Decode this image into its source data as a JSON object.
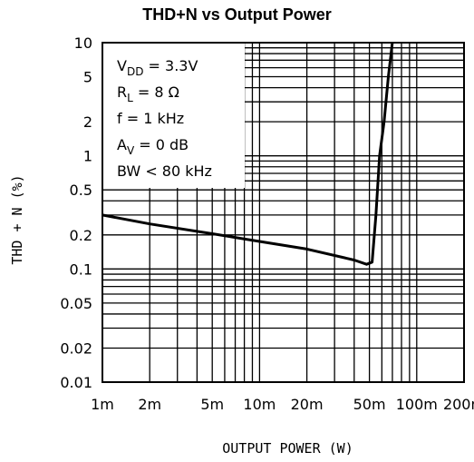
{
  "chart_data": {
    "type": "line",
    "title": "THD+N vs Output Power",
    "xlabel": "OUTPUT POWER (W)",
    "ylabel": "THD + N (%)",
    "x_scale": "log",
    "y_scale": "log",
    "xlim": [
      0.001,
      0.2
    ],
    "ylim": [
      0.01,
      10
    ],
    "grid": true,
    "x_ticks": [
      0.001,
      0.002,
      0.005,
      0.01,
      0.02,
      0.05,
      0.1,
      0.2
    ],
    "x_tick_labels": [
      "1m",
      "2m",
      "5m",
      "10m",
      "20m",
      "50m",
      "100m",
      "200m"
    ],
    "y_ticks": [
      0.01,
      0.02,
      0.05,
      0.1,
      0.2,
      0.5,
      1,
      2,
      5,
      10
    ],
    "y_tick_labels": [
      "0.01",
      "0.02",
      "0.05",
      "0.1",
      "0.2",
      "0.5",
      "1",
      "2",
      "5",
      "10"
    ],
    "annotation_lines": [
      {
        "main": "V",
        "sub": "DD",
        "rest": " = 3.3V"
      },
      {
        "main": "R",
        "sub": "L",
        "rest": " = 8 Ω"
      },
      {
        "main": "f = 1 kHz",
        "sub": "",
        "rest": ""
      },
      {
        "main": "A",
        "sub": "V",
        "rest": " = 0 dB"
      },
      {
        "main": "BW < 80 kHz",
        "sub": "",
        "rest": ""
      }
    ],
    "series": [
      {
        "x": [
          0.001,
          0.002,
          0.005,
          0.01,
          0.02,
          0.04,
          0.048,
          0.052,
          0.055,
          0.058,
          0.062,
          0.066,
          0.07
        ],
        "y": [
          0.3,
          0.25,
          0.205,
          0.175,
          0.15,
          0.12,
          0.11,
          0.115,
          0.3,
          1.0,
          2.0,
          5.0,
          10.0
        ]
      }
    ]
  }
}
